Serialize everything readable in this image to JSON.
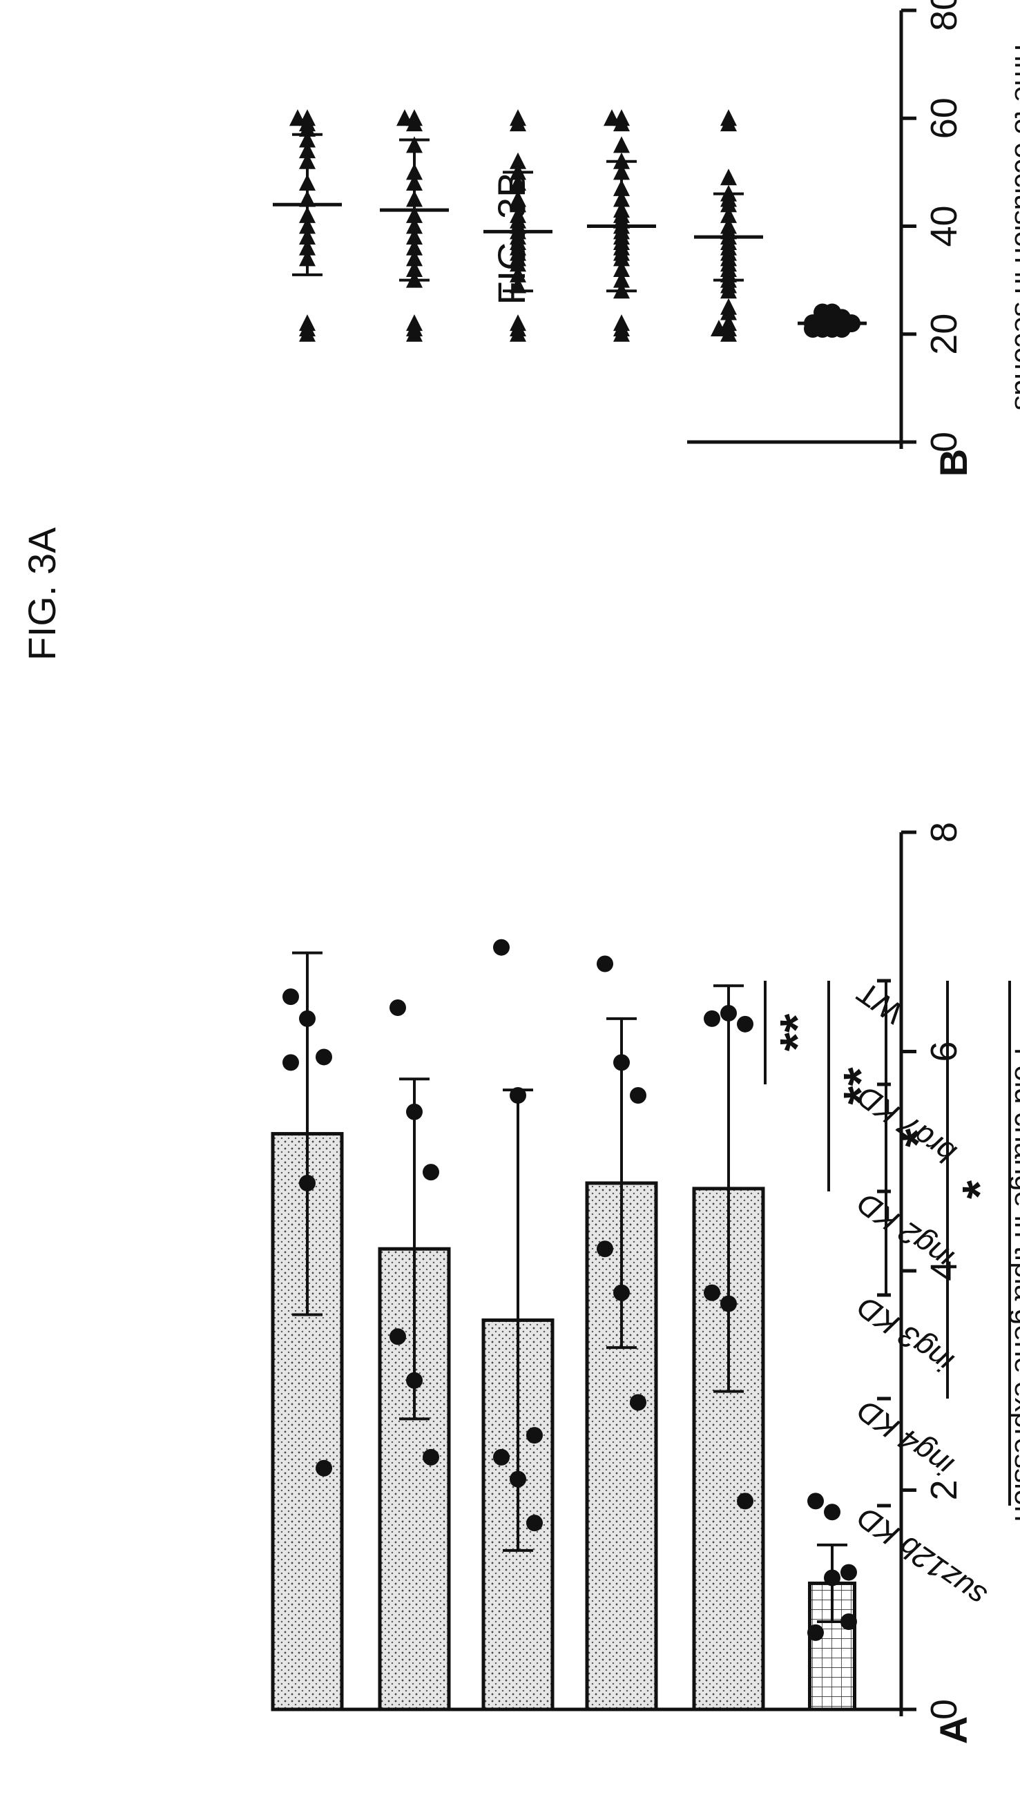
{
  "chart_data": [
    {
      "type": "bar",
      "panel_label": "A",
      "title": "FIG. 3A",
      "ylabel": "Fold change in tfpia gene expression",
      "ylim": [
        0,
        8
      ],
      "yticks": [
        "0",
        "2",
        "4",
        "6",
        "8"
      ],
      "categories": [
        "WT",
        "brd7 KD",
        "ing2 KD",
        "ing3 KD",
        "ing4 KD",
        "suz12b KD"
      ],
      "values": [
        1.15,
        4.75,
        4.8,
        3.55,
        4.2,
        5.25
      ],
      "errors": [
        0.35,
        1.85,
        1.5,
        2.1,
        1.55,
        1.65
      ],
      "points": [
        [
          1.9,
          1.8,
          1.25,
          0.7,
          1.2,
          0.8
        ],
        [
          6.3,
          6.35,
          6.25,
          3.8,
          3.7,
          1.9
        ],
        [
          6.8,
          5.9,
          5.6,
          4.2,
          3.8,
          2.8
        ],
        [
          6.95,
          5.6,
          2.5,
          2.3,
          2.1,
          1.7
        ],
        [
          6.4,
          5.45,
          4.9,
          3.4,
          3.0,
          2.3
        ],
        [
          6.5,
          6.3,
          5.95,
          5.9,
          4.8,
          2.2
        ]
      ],
      "significance": [
        "**",
        "**",
        "*",
        "*",
        "***"
      ],
      "colors": {
        "bar_fill": "#d9d9d9",
        "ink": "#111111"
      }
    },
    {
      "type": "scatter",
      "panel_label": "B",
      "title": "FIG. 3B",
      "ylabel": "Time to occlusion in seconds",
      "ylim": [
        0,
        80
      ],
      "yticks": [
        "0",
        "20",
        "40",
        "60",
        "80"
      ],
      "categories": [
        "WT",
        "brd7 KD",
        "ing2 KD",
        "ing3 KD",
        "ing4 KD",
        "suz12b KD"
      ],
      "means": [
        22,
        38,
        40,
        39,
        43,
        44
      ],
      "errors": [
        1,
        8,
        12,
        11,
        13,
        13
      ],
      "points": [
        [
          21,
          21,
          22,
          22,
          23,
          23,
          24,
          21,
          22,
          23,
          22,
          21,
          24,
          22
        ],
        [
          60,
          59,
          49,
          46,
          45,
          44,
          42,
          40,
          39,
          38,
          37,
          36,
          35,
          34,
          33,
          32,
          31,
          30,
          29,
          28,
          25,
          24,
          22,
          21,
          21,
          20
        ],
        [
          60,
          60,
          59,
          55,
          52,
          50,
          47,
          45,
          43,
          42,
          41,
          40,
          39,
          38,
          37,
          36,
          35,
          34,
          32,
          30,
          28,
          22,
          21,
          20
        ],
        [
          60,
          59,
          52,
          50,
          48,
          45,
          44,
          42,
          41,
          40,
          39,
          38,
          37,
          36,
          35,
          34,
          33,
          31,
          29,
          22,
          21,
          20
        ],
        [
          60,
          60,
          59,
          55,
          50,
          48,
          45,
          42,
          40,
          38,
          36,
          34,
          32,
          30,
          22,
          21,
          20
        ],
        [
          60,
          60,
          59,
          58,
          56,
          54,
          52,
          48,
          45,
          42,
          40,
          38,
          36,
          34,
          22,
          21,
          20
        ]
      ],
      "significance": [
        "****",
        "****",
        "****",
        "****",
        "****"
      ],
      "colors": {
        "marker": "#111111",
        "ink": "#111111"
      }
    }
  ]
}
